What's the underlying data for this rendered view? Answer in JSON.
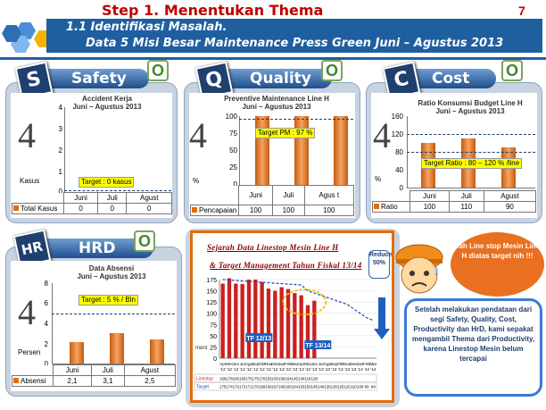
{
  "header": {
    "title": "Step 1. Menentukan Thema",
    "page_number": "7",
    "sub1": "1.1 Identifikasi Masalah.",
    "sub2": "Data 5 Misi Besar Maintenance Press Green Juni – Agustus 2013"
  },
  "colors": {
    "banner": "#1f5fa0",
    "bar": "#e36c09",
    "title": "#c00000"
  },
  "panels": {
    "safety": {
      "letter": "S",
      "label": "Safety",
      "status": "O",
      "big": "4",
      "chart_title": "Accident Kerja\nJuni – Agustus 2013",
      "unit": "Kasus",
      "target": "Target  : 0 kasus",
      "row_label": "Total Kasus",
      "categories": [
        "Juni",
        "Juli",
        "Agust"
      ],
      "values": [
        "0",
        "0",
        "0"
      ],
      "ticks": [
        "4",
        "3",
        "2",
        "1",
        "0"
      ]
    },
    "quality": {
      "letter": "Q",
      "label": "Quality",
      "status": "O",
      "big": "4",
      "chart_title": "Preventive Maintenance Line H\nJuni – Agustus 2013",
      "unit": "%",
      "target": "Target PM : 97 %",
      "row_label": "Pencapaian",
      "categories": [
        "Juni",
        "Juli",
        "Agus t"
      ],
      "values": [
        "100",
        "100",
        "100"
      ],
      "ticks": [
        "100",
        "75",
        "50",
        "25",
        "0"
      ]
    },
    "cost": {
      "letter": "C",
      "label": "Cost",
      "status": "O",
      "big": "4",
      "chart_title": "Ratio Konsumsi Budget Line H\nJuni – Agustus 2013",
      "unit": "%",
      "target": "Target Ratio : 80 – 120 % /line",
      "row_label": "Ratio",
      "categories": [
        "Juni",
        "Juli",
        "Agust"
      ],
      "values": [
        "100",
        "110",
        "90"
      ],
      "ticks": [
        "160",
        "120",
        "80",
        "40",
        "0"
      ]
    },
    "hrd": {
      "letter": "HR",
      "label": "HRD",
      "status": "O",
      "big": "4",
      "chart_title": "Data Absensi\nJuni – Agustus 2013",
      "unit": "Persen",
      "target": "Target : 5 % / Bln",
      "row_label": "Absensi",
      "categories": [
        "Juni",
        "Juli",
        "Agust"
      ],
      "values": [
        "2,1",
        "3,1",
        "2,5"
      ],
      "ticks": [
        "8",
        "6",
        "4",
        "2",
        "0"
      ]
    }
  },
  "linestop": {
    "title1": "Sejarah Data Linestop Mesin Line H",
    "title2": "& Target Management Tahun Fiskal 13/14",
    "reduce": "Reduce 50%",
    "fy1": "TF 12/13",
    "fy2": "TF 13/14",
    "ylabel": "ment",
    "ticks": [
      "175",
      "150",
      "125",
      "100",
      "75",
      "50",
      "25",
      "0"
    ],
    "row1": "Linestop",
    "row2": "Target"
  },
  "callouts": {
    "cloud": "Wah  Line stop Mesin Line-H diatas target nih !!!",
    "summary": "Setelah melakukan pendataan dari segi Safety, Quality, Cost, Productivity dan HrD, kami sepakat mengambil  Thema dari Productivity, karena Linestop Mesin belum tercapai"
  },
  "chart_data": [
    {
      "type": "bar",
      "title": "Accident Kerja Juni – Agustus 2013",
      "categories": [
        "Juni",
        "Juli",
        "Agust"
      ],
      "values": [
        0,
        0,
        0
      ],
      "ylim": [
        0,
        4
      ],
      "target": 0,
      "ylabel": "Kasus"
    },
    {
      "type": "bar",
      "title": "Preventive Maintenance Line H Juni – Agustus 2013",
      "categories": [
        "Juni",
        "Juli",
        "Agus t"
      ],
      "values": [
        100,
        100,
        100
      ],
      "ylim": [
        0,
        100
      ],
      "target": 97,
      "ylabel": "%"
    },
    {
      "type": "bar",
      "title": "Ratio Konsumsi Budget Line H Juni – Agustus 2013",
      "categories": [
        "Juni",
        "Juli",
        "Agust"
      ],
      "values": [
        100,
        110,
        90
      ],
      "ylim": [
        0,
        160
      ],
      "target_range": [
        80,
        120
      ],
      "ylabel": "%"
    },
    {
      "type": "bar",
      "title": "Data Absensi Juni – Agustus 2013",
      "categories": [
        "Juni",
        "Juli",
        "Agust"
      ],
      "values": [
        2.1,
        3.1,
        2.5
      ],
      "ylim": [
        0,
        8
      ],
      "target": 5,
      "ylabel": "Persen"
    },
    {
      "type": "bar",
      "title": "Sejarah Data Linestop Mesin Line H & Target Management Tahun Fiskal 13/14",
      "categories": [
        "Apr '12",
        "Mei '12",
        "Jun '12",
        "Jul '12",
        "Agu '12",
        "Sep '12",
        "Okt '12",
        "Nov '12",
        "Des '12",
        "Jan '13",
        "Feb '13",
        "Mar '13",
        "Apr '13",
        "Mei '13",
        "Jun '13",
        "Jul '13",
        "Agu '13",
        "Sep '13",
        "Okt '13",
        "Nov '13",
        "Des '13",
        "Jan '14",
        "Feb '14",
        "Mar '14"
      ],
      "series": [
        {
          "name": "Linestop",
          "values": [
            166,
            178,
            166,
            165,
            175,
            175,
            170,
            155,
            150,
            158,
            154,
            145,
            140,
            118,
            128,
            null,
            null,
            null,
            null,
            null,
            null,
            null,
            null,
            null
          ]
        },
        {
          "name": "Target",
          "values": [
            175,
            174,
            173,
            172,
            171,
            170,
            169,
            168,
            167,
            166,
            165,
            164,
            163,
            150,
            145,
            140,
            135,
            130,
            125,
            120,
            110,
            100,
            90,
            84
          ]
        }
      ],
      "ylim": [
        0,
        175
      ]
    }
  ]
}
